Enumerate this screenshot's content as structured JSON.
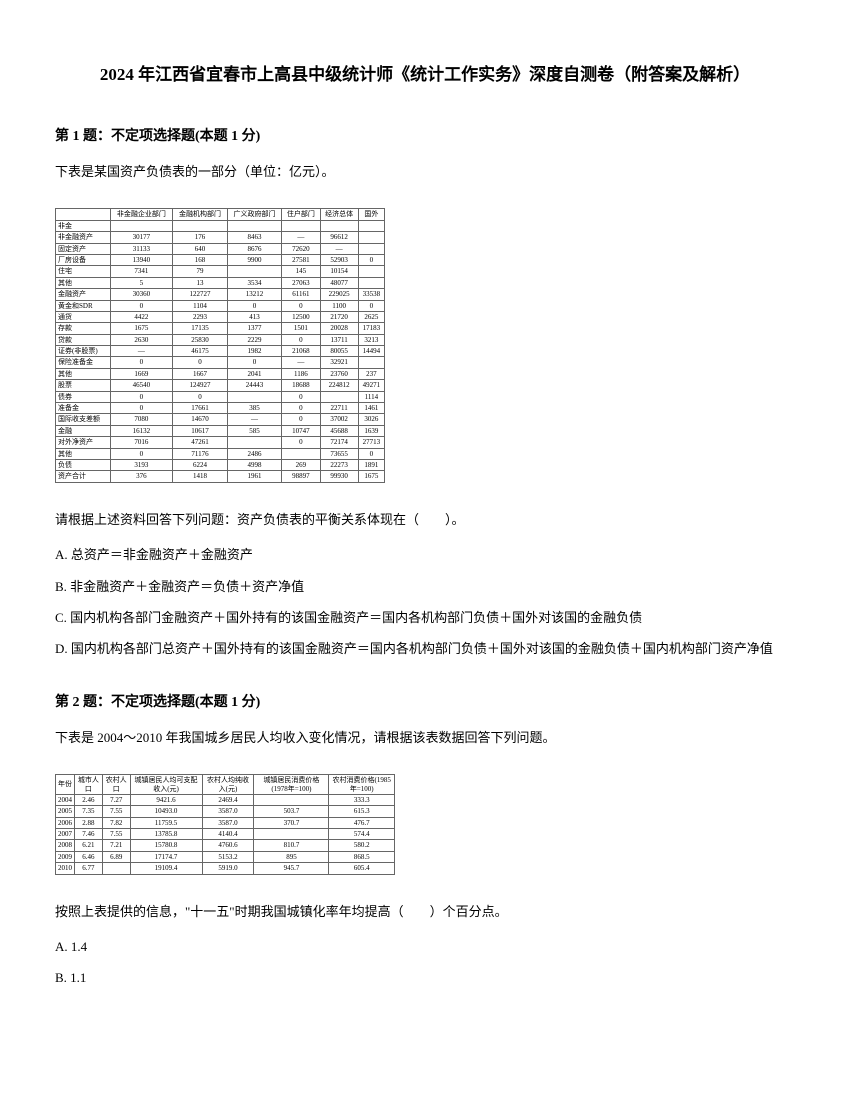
{
  "title": "2024 年江西省宜春市上高县中级统计师《统计工作实务》深度自测卷（附答案及解析）",
  "q1": {
    "header": "第 1 题：不定项选择题(本题 1 分)",
    "text": "下表是某国资产负债表的一部分（单位：亿元）。",
    "table": {
      "headers": [
        "",
        "非金融企业部门",
        "金融机构部门",
        "广义政府部门",
        "住户部门",
        "经济总体",
        "国外"
      ],
      "rows": [
        [
          "非金",
          "",
          "",
          "",
          "",
          "",
          ""
        ],
        [
          "非金融资产",
          "30177",
          "176",
          "8463",
          "—",
          "96612",
          ""
        ],
        [
          "固定资产",
          "31133",
          "640",
          "8676",
          "72620",
          "—",
          ""
        ],
        [
          "厂房设备",
          "13940",
          "168",
          "9900",
          "27581",
          "52903",
          "0"
        ],
        [
          "住宅",
          "7341",
          "79",
          "",
          "145",
          "10154",
          ""
        ],
        [
          "其他",
          "5",
          "13",
          "3534",
          "27063",
          "48077",
          ""
        ],
        [
          "金融资产",
          "30360",
          "122727",
          "13212",
          "61161",
          "229025",
          "33538"
        ],
        [
          "黄金和SDR",
          "0",
          "1104",
          "0",
          "0",
          "1100",
          "0"
        ],
        [
          "通货",
          "4422",
          "2293",
          "413",
          "12500",
          "21720",
          "2625"
        ],
        [
          "存款",
          "1675",
          "17135",
          "1377",
          "1501",
          "20028",
          "17183"
        ],
        [
          "贷款",
          "2630",
          "25830",
          "2229",
          "0",
          "13711",
          "3213"
        ],
        [
          "证券(非股票)",
          "—",
          "46175",
          "1982",
          "21068",
          "80055",
          "14494"
        ],
        [
          "保险准备金",
          "0",
          "0",
          "0",
          "—",
          "32921",
          ""
        ],
        [
          "其他",
          "1669",
          "1667",
          "2041",
          "1186",
          "23760",
          "237"
        ],
        [
          "股票",
          "46540",
          "124927",
          "24443",
          "18688",
          "224812",
          "49271"
        ],
        [
          "债券",
          "0",
          "0",
          "",
          "0",
          "",
          "1114"
        ],
        [
          "准备金",
          "0",
          "17661",
          "385",
          "0",
          "22711",
          "1461"
        ],
        [
          "国际收支差额",
          "7080",
          "14670",
          "—",
          "0",
          "37002",
          "3026"
        ],
        [
          "金融",
          "16132",
          "10617",
          "585",
          "10747",
          "45688",
          "1639"
        ],
        [
          "对外净资产",
          "7016",
          "47261",
          "",
          "0",
          "72174",
          "27713"
        ],
        [
          "其他",
          "0",
          "71176",
          "2486",
          "",
          "73655",
          "0"
        ],
        [
          "负债",
          "3193",
          "6224",
          "4998",
          "269",
          "22273",
          "1891"
        ],
        [
          "资产合计",
          "376",
          "1418",
          "1961",
          "98897",
          "99930",
          "1675"
        ]
      ]
    },
    "prompt": "请根据上述资料回答下列问题：资产负债表的平衡关系体现在（　　）。",
    "options": {
      "a": "A. 总资产＝非金融资产＋金融资产",
      "b": "B. 非金融资产＋金融资产＝负债＋资产净值",
      "c": "C. 国内机构各部门金融资产＋国外持有的该国金融资产＝国内各机构部门负债＋国外对该国的金融负债",
      "d": "D. 国内机构各部门总资产＋国外持有的该国金融资产＝国内各机构部门负债＋国外对该国的金融负债＋国内机构部门资产净值"
    }
  },
  "q2": {
    "header": "第 2 题：不定项选择题(本题 1 分)",
    "text": "下表是 2004～2010 年我国城乡居民人均收入变化情况，请根据该表数据回答下列问题。",
    "table": {
      "headers": [
        "年份",
        "城市人口",
        "农村人口",
        "城镇居民人均可支配收入(元)",
        "农村人均纯收入(元)",
        "城镇居民消费价格(1978年=100)",
        "农村消费价格(1985年=100)"
      ],
      "rows": [
        [
          "2004",
          "2.46",
          "7.27",
          "9421.6",
          "2469.4",
          "",
          "333.3"
        ],
        [
          "2005",
          "7.35",
          "7.55",
          "10493.0",
          "3587.0",
          "503.7",
          "615.3"
        ],
        [
          "2006",
          "2.88",
          "7.82",
          "11759.5",
          "3587.0",
          "370.7",
          "476.7"
        ],
        [
          "2007",
          "7.46",
          "7.55",
          "13785.8",
          "4140.4",
          "",
          "574.4"
        ],
        [
          "2008",
          "6.21",
          "7.21",
          "15780.8",
          "4760.6",
          "810.7",
          "580.2"
        ],
        [
          "2009",
          "6.46",
          "6.89",
          "17174.7",
          "5153.2",
          "895",
          "868.5"
        ],
        [
          "2010",
          "6.77",
          "",
          "19109.4",
          "5919.0",
          "945.7",
          "605.4"
        ]
      ]
    },
    "prompt": "按照上表提供的信息，\"十一五\"时期我国城镇化率年均提高（　　）个百分点。",
    "options": {
      "a": "A. 1.4",
      "b": "B. 1.1"
    }
  }
}
